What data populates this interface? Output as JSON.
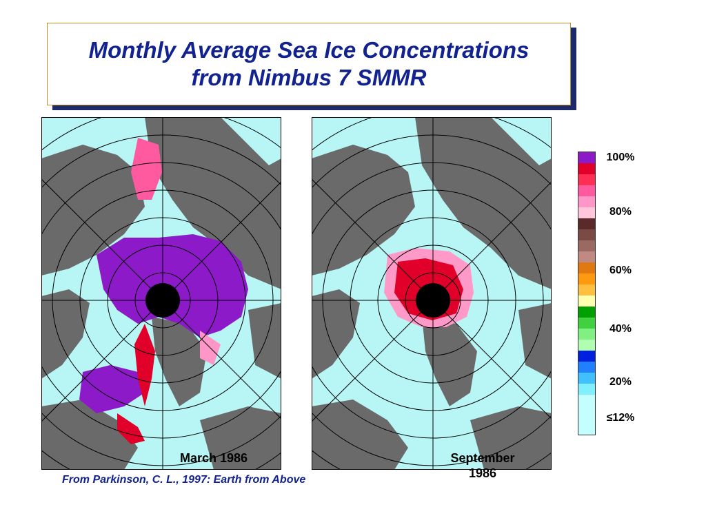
{
  "title": {
    "line1": "Monthly Average Sea Ice Concentrations",
    "line2": "from Nimbus 7 SMMR"
  },
  "maps": [
    {
      "label": "March 1986"
    },
    {
      "label_line1": "September",
      "label_line2": "1986"
    }
  ],
  "source": "From Parkinson, C. L., 1997: Earth from Above",
  "legend": {
    "ticks": [
      "100%",
      "80%",
      "60%",
      "40%",
      "20%",
      "≤12%"
    ],
    "colors": [
      "#8c1ac8",
      "#e0002a",
      "#ff2e55",
      "#ff5aa0",
      "#ff96c8",
      "#ffc6dc",
      "#5a2a2a",
      "#7a4a44",
      "#9a6a62",
      "#c08a82",
      "#e07a10",
      "#ff9a10",
      "#ffc040",
      "#ffffb0",
      "#00a000",
      "#40d040",
      "#80f080",
      "#b0ffb0",
      "#0020e0",
      "#2080ff",
      "#40c0ff",
      "#80f0ff",
      "#c4ffff"
    ]
  },
  "colors": {
    "title_text": "#12228f",
    "ocean": "#b8f6f6",
    "land": "#6a6a6a",
    "ice_full": "#8c1ac8",
    "ice_high": "#e0002a",
    "ice_pink": "#ff9ac8",
    "pole_hole": "#000000",
    "grid": "#000000"
  }
}
